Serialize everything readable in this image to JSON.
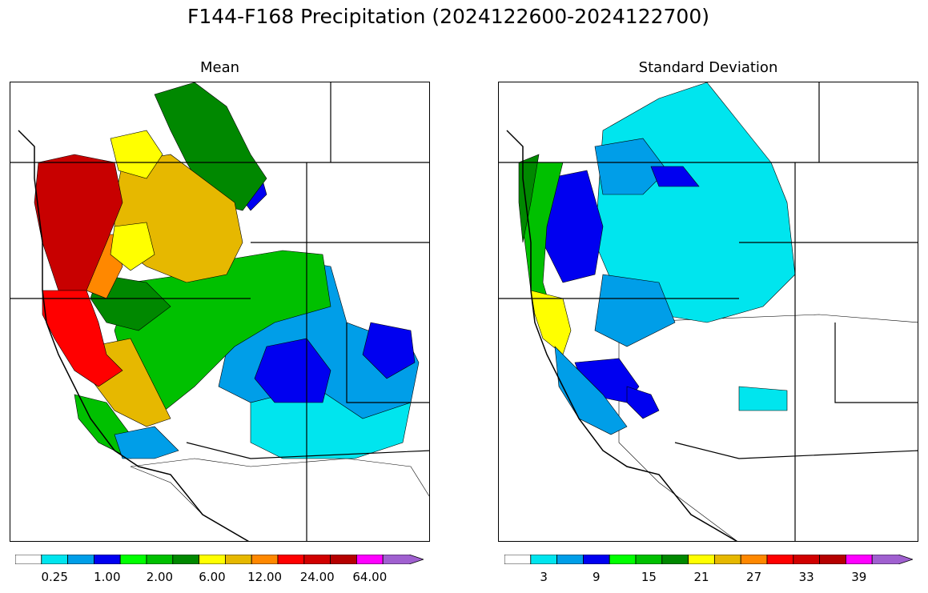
{
  "title": "F144-F168 Precipitation (2024122600-2024122700)",
  "panels": [
    {
      "title": "Mean",
      "colorbar": {
        "colors": [
          "#ffffff",
          "#00e5ee",
          "#009ee8",
          "#0000f0",
          "#00ff00",
          "#00c000",
          "#008800",
          "#ffff00",
          "#e6b800",
          "#ff8800",
          "#ff0000",
          "#d10000",
          "#b50000",
          "#ff00ff",
          "#a060d0"
        ],
        "labels": [
          "0.25",
          "1.00",
          "2.00",
          "6.00",
          "12.00",
          "24.00",
          "64.00"
        ]
      },
      "regions": {
        "coast_north": "#c80000",
        "coast_central": "#ff0000",
        "coast_south": "#ff0000",
        "sierra": "#e6b800",
        "interior_north_yellow": "#ffff00",
        "interior_gold": "#e6b800",
        "interior_orange": "#ff8800",
        "interior_green": "#00c000",
        "interior_darkgreen": "#008800",
        "rockies_blue": "#009ee8",
        "rockies_darkblue": "#0000f0",
        "southeast_cyan": "#00e5ee",
        "south_white": "#ffffff"
      }
    },
    {
      "title": "Standard Deviation",
      "colorbar": {
        "colors": [
          "#ffffff",
          "#00e5ee",
          "#009ee8",
          "#0000f0",
          "#00ff00",
          "#00c000",
          "#008800",
          "#ffff00",
          "#e6b800",
          "#ff8800",
          "#ff0000",
          "#d10000",
          "#b50000",
          "#ff00ff",
          "#a060d0"
        ],
        "labels": [
          "3",
          "9",
          "15",
          "21",
          "27",
          "33",
          "39"
        ]
      },
      "regions": {
        "coast_north": "#008800",
        "coast_central": "#00c000",
        "coast_south": "#ffff00",
        "sierra": "#0000f0",
        "interior_north": "#009ee8",
        "interior_cyan": "#00e5ee",
        "interior_darkblue": "#0000f0",
        "south_white": "#ffffff"
      }
    }
  ]
}
